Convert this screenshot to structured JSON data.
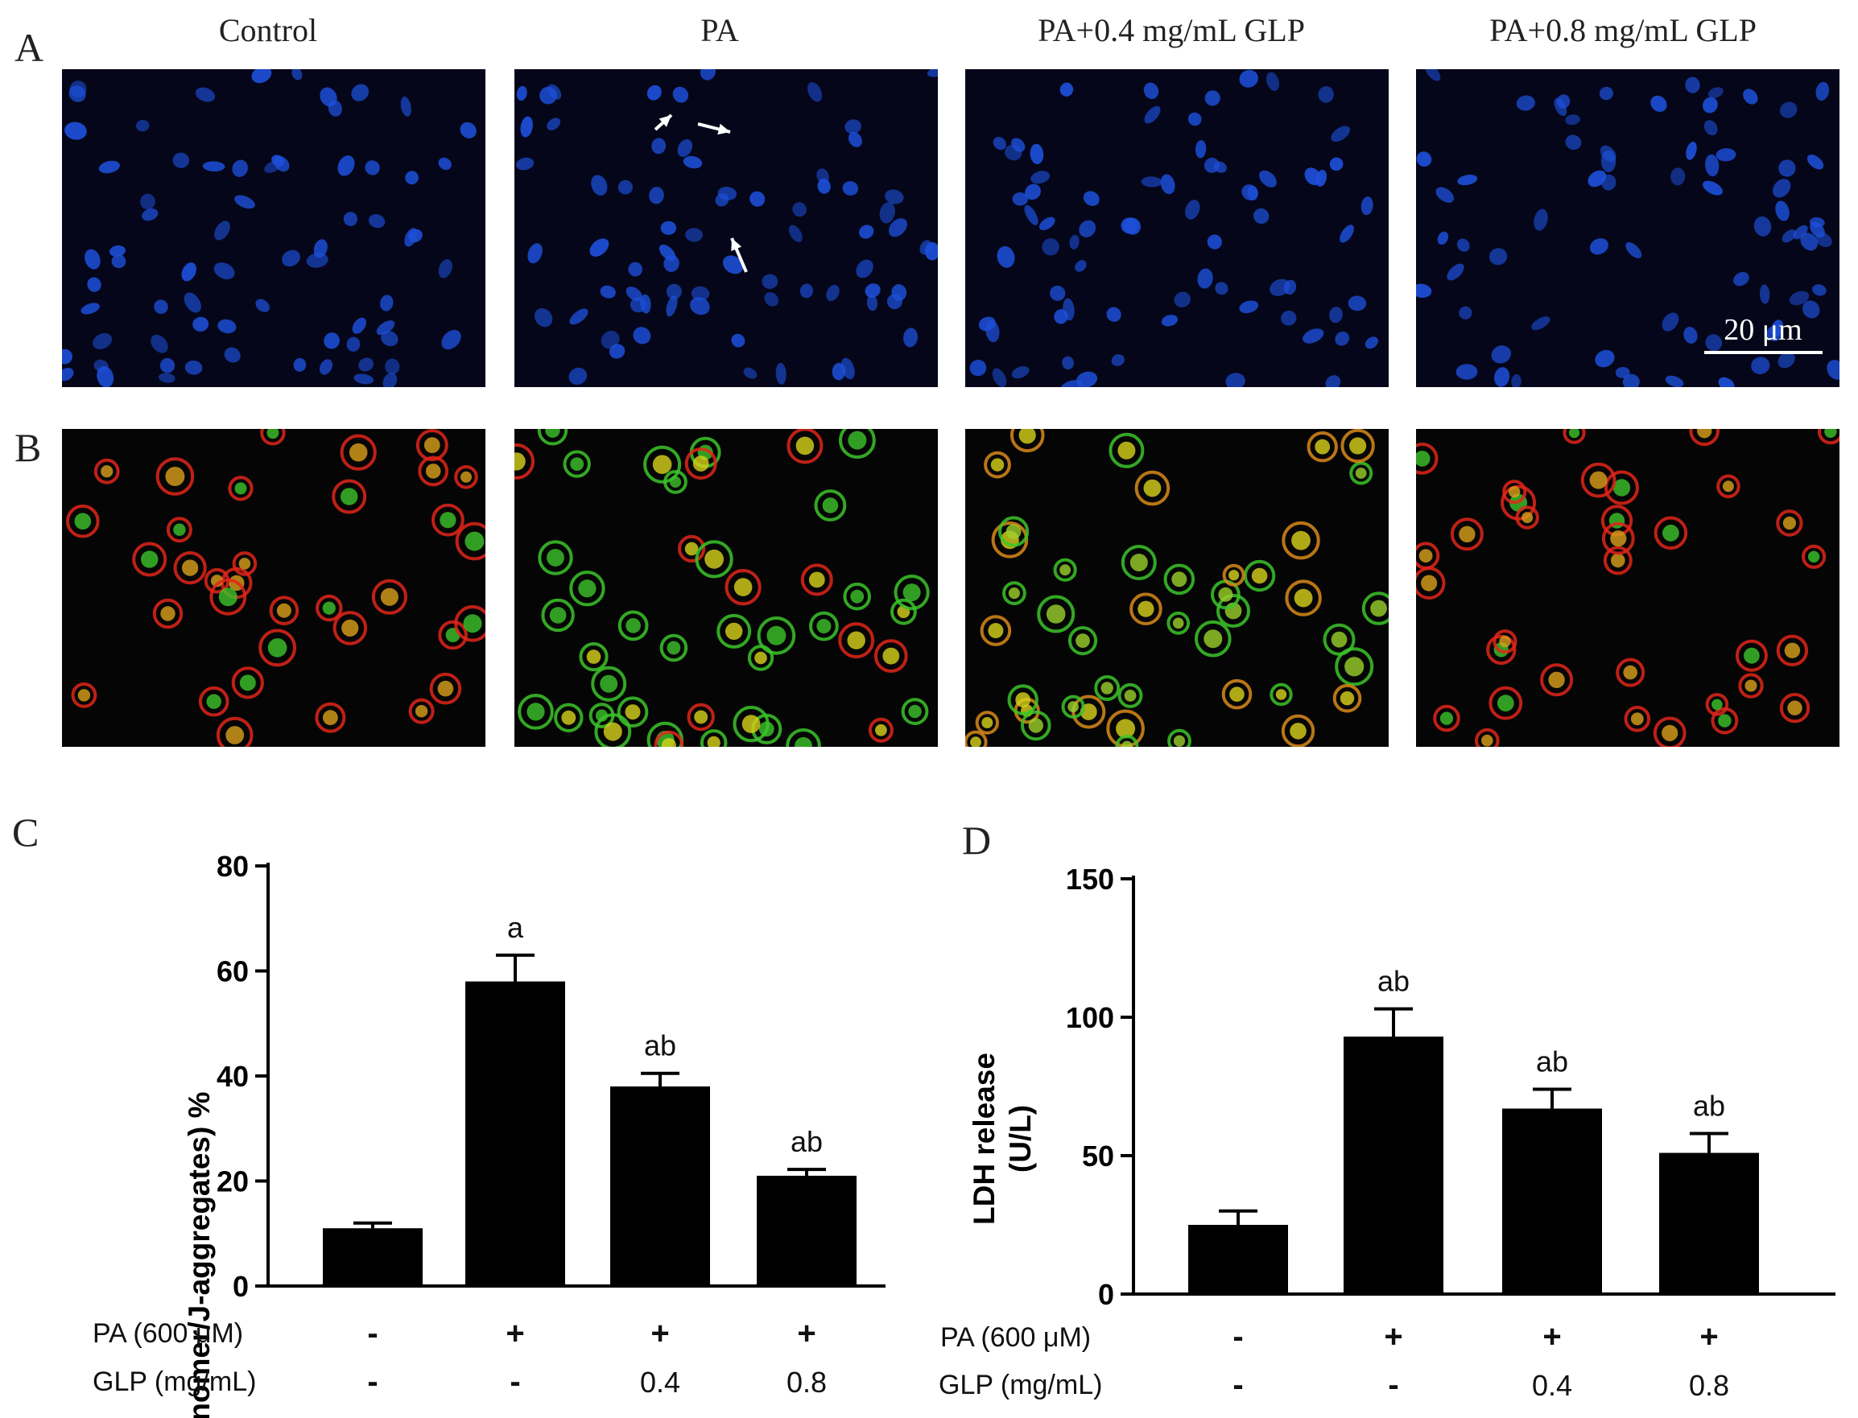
{
  "figure": {
    "panel_labels": {
      "a": "A",
      "b": "B",
      "c": "C",
      "d": "D"
    },
    "column_titles": [
      "Control",
      "PA",
      "PA+0.4 mg/mL GLP",
      "PA+0.8 mg/mL GLP"
    ],
    "scale_bar": "20 μm"
  },
  "colors": {
    "nucleus_blue": "#1d4fd8",
    "mito_red": "#e0261a",
    "mito_green": "#3cc42a",
    "mito_yellow": "#d8d21a",
    "bar": "#000000"
  },
  "chart_data": [
    {
      "type": "bar",
      "panel": "C",
      "ylabel": "(monomer/J-aggregates) %",
      "ylim": [
        0,
        80
      ],
      "yticks": [
        0,
        20,
        40,
        60,
        80
      ],
      "row_labels": [
        "PA (600 μM)",
        "GLP (mg/mL)"
      ],
      "conditions": [
        {
          "pa": "-",
          "glp": "-"
        },
        {
          "pa": "+",
          "glp": "-"
        },
        {
          "pa": "+",
          "glp": "0.4"
        },
        {
          "pa": "+",
          "glp": "0.8"
        }
      ],
      "values": [
        11,
        58,
        38,
        21
      ],
      "errors": [
        1,
        5,
        2.5,
        1.2
      ],
      "annotations": [
        "",
        "a",
        "ab",
        "ab"
      ]
    },
    {
      "type": "bar",
      "panel": "D",
      "ylabel": [
        "LDH release",
        "(U/L)"
      ],
      "ylim": [
        0,
        150
      ],
      "yticks": [
        0,
        50,
        100,
        150
      ],
      "row_labels": [
        "PA (600 μM)",
        "GLP (mg/mL)"
      ],
      "conditions": [
        {
          "pa": "-",
          "glp": "-"
        },
        {
          "pa": "+",
          "glp": "-"
        },
        {
          "pa": "+",
          "glp": "0.4"
        },
        {
          "pa": "+",
          "glp": "0.8"
        }
      ],
      "values": [
        25,
        93,
        67,
        51
      ],
      "errors": [
        5,
        10,
        7,
        7
      ],
      "annotations": [
        "",
        "ab",
        "ab",
        "ab"
      ]
    }
  ]
}
